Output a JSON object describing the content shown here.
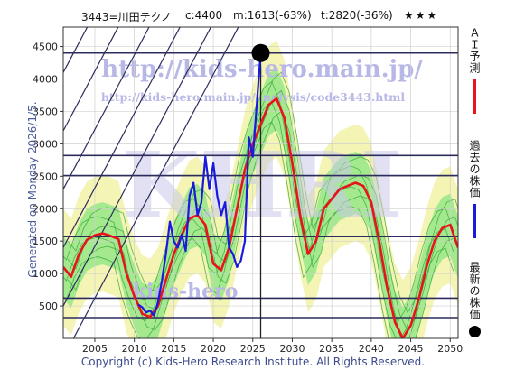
{
  "header": {
    "stock": "3443=川田テクノ",
    "current": "c:4400",
    "min": "m:1613(-63%)",
    "target": "t:2820(-36%)",
    "rating": "★★★"
  },
  "watermark": {
    "url_big": "http://kids-hero.main.jp/",
    "url_small": "http://kids-hero.main.jp/analysis/code3443.html",
    "logo": "KHRI",
    "url_bottom": "kids-hero"
  },
  "side_label": "Generated on Monday 2026/1/5.",
  "footer": "Copyright (c) Kids-Hero Research Institute. All Rights Reserved.",
  "legend": [
    {
      "label": "ＡＩ予測",
      "color": "#e8141c",
      "marker": "line"
    },
    {
      "label": "過去の株価",
      "color": "#1a1adc",
      "marker": "line"
    },
    {
      "label": "最新の株価",
      "color": "#000000",
      "marker": "dot"
    }
  ],
  "colors": {
    "background": "#ffffff",
    "band_yellow": "#f4f4b4",
    "band_green": "#9be88a",
    "band_lines": "#3aa83a",
    "grid": "#d0d0d0",
    "hline": "#2c2c5c",
    "diag": "#2c2c5c",
    "price": "#1a1adc",
    "ai": "#e8141c"
  },
  "chart_data": {
    "type": "line",
    "xlim": [
      2001,
      2051
    ],
    "ylim": [
      0,
      4800
    ],
    "x_ticks": [
      2005,
      2010,
      2015,
      2020,
      2025,
      2030,
      2035,
      2040,
      2045,
      2050
    ],
    "y_ticks": [
      500,
      1000,
      1500,
      2000,
      2500,
      3000,
      3500,
      4000,
      4500
    ],
    "grid": true,
    "horizontal_levels": [
      320,
      620,
      1570,
      2510,
      2820,
      4400
    ],
    "vertical_marker_x": 2026.0,
    "latest": {
      "x": 2026.0,
      "y": 4400
    },
    "series": [
      {
        "name": "ＡＩ予測",
        "color": "#e8141c",
        "points": [
          [
            2001,
            1100
          ],
          [
            2002,
            950
          ],
          [
            2003,
            1300
          ],
          [
            2004,
            1520
          ],
          [
            2005,
            1590
          ],
          [
            2006,
            1620
          ],
          [
            2007,
            1580
          ],
          [
            2008,
            1530
          ],
          [
            2009,
            1000
          ],
          [
            2010,
            650
          ],
          [
            2011,
            380
          ],
          [
            2012,
            330
          ],
          [
            2013,
            500
          ],
          [
            2014,
            900
          ],
          [
            2015,
            1300
          ],
          [
            2016,
            1600
          ],
          [
            2017,
            1850
          ],
          [
            2018,
            1900
          ],
          [
            2019,
            1750
          ],
          [
            2020,
            1150
          ],
          [
            2021,
            1050
          ],
          [
            2022,
            1400
          ],
          [
            2023,
            2000
          ],
          [
            2024,
            2600
          ],
          [
            2025,
            3000
          ],
          [
            2026,
            3300
          ],
          [
            2027,
            3600
          ],
          [
            2028,
            3700
          ],
          [
            2029,
            3400
          ],
          [
            2030,
            2700
          ],
          [
            2031,
            1900
          ],
          [
            2032,
            1300
          ],
          [
            2033,
            1500
          ],
          [
            2034,
            2000
          ],
          [
            2035,
            2150
          ],
          [
            2036,
            2300
          ],
          [
            2037,
            2350
          ],
          [
            2038,
            2400
          ],
          [
            2039,
            2350
          ],
          [
            2040,
            2100
          ],
          [
            2041,
            1500
          ],
          [
            2042,
            800
          ],
          [
            2043,
            250
          ],
          [
            2044,
            0
          ],
          [
            2045,
            200
          ],
          [
            2046,
            600
          ],
          [
            2047,
            1100
          ],
          [
            2048,
            1500
          ],
          [
            2049,
            1700
          ],
          [
            2050,
            1750
          ],
          [
            2051,
            1400
          ]
        ]
      },
      {
        "name": "過去の株価",
        "color": "#1a1adc",
        "points": [
          [
            2010.5,
            520
          ],
          [
            2011,
            480
          ],
          [
            2011.5,
            400
          ],
          [
            2012,
            430
          ],
          [
            2012.5,
            350
          ],
          [
            2013,
            560
          ],
          [
            2013.5,
            900
          ],
          [
            2014,
            1300
          ],
          [
            2014.5,
            1800
          ],
          [
            2015,
            1500
          ],
          [
            2015.5,
            1400
          ],
          [
            2016,
            1600
          ],
          [
            2016.5,
            1350
          ],
          [
            2017,
            2200
          ],
          [
            2017.5,
            2400
          ],
          [
            2018,
            1900
          ],
          [
            2018.5,
            2100
          ],
          [
            2019,
            2800
          ],
          [
            2019.5,
            2300
          ],
          [
            2020,
            2700
          ],
          [
            2020.5,
            2200
          ],
          [
            2021,
            1900
          ],
          [
            2021.5,
            2100
          ],
          [
            2022,
            1400
          ],
          [
            2022.5,
            1300
          ],
          [
            2023,
            1100
          ],
          [
            2023.5,
            1200
          ],
          [
            2024,
            1500
          ],
          [
            2024.5,
            3100
          ],
          [
            2025,
            2800
          ],
          [
            2025.5,
            3600
          ],
          [
            2026,
            4400
          ]
        ]
      }
    ]
  }
}
